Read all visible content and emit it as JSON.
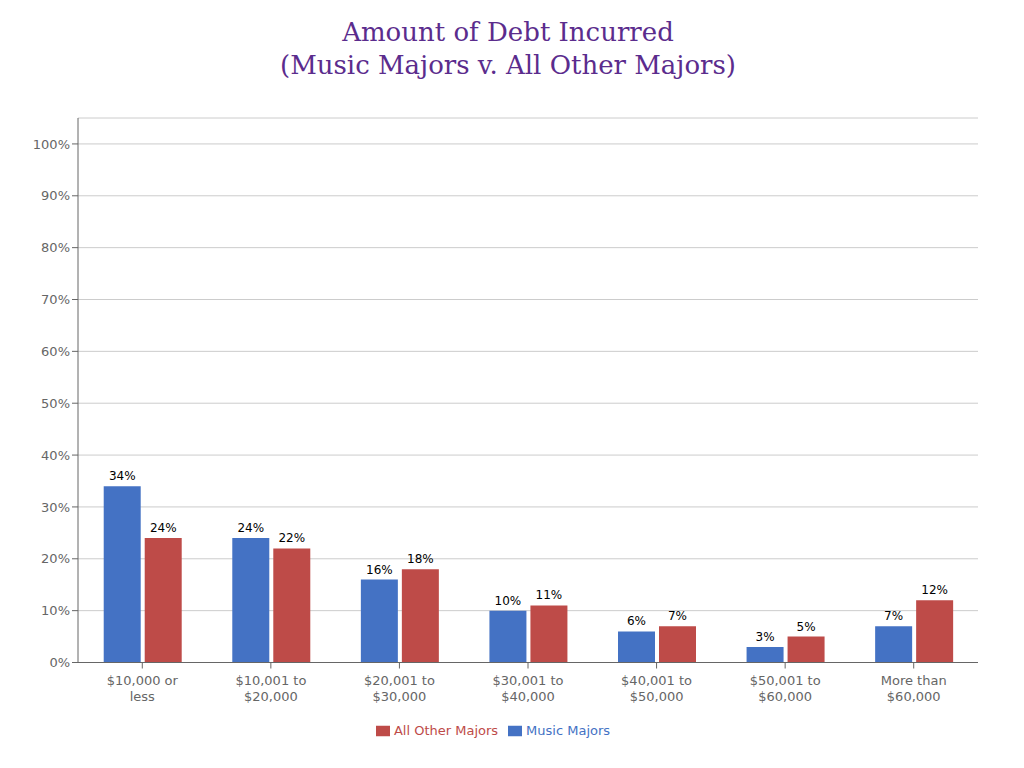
{
  "chart_data": {
    "type": "bar",
    "title": "Amount of Debt Incurred\n(Music Majors v. All Other Majors)",
    "categories": [
      "$10,000 or\nless",
      "$10,001 to\n$20,000",
      "$20,001 to\n$30,000",
      "$30,001 to\n$40,000",
      "$40,001 to\n$50,000",
      "$50,001 to\n$60,000",
      "More than\n$60,000"
    ],
    "series": [
      {
        "name": "Music Majors",
        "color": "#4472C4",
        "values": [
          34,
          24,
          16,
          10,
          6,
          3,
          7
        ],
        "value_labels": [
          "34%",
          "24%",
          "16%",
          "10%",
          "6%",
          "3%",
          "7%"
        ]
      },
      {
        "name": "All Other Majors",
        "color": "#BE4B48",
        "values": [
          24,
          22,
          18,
          11,
          7,
          5,
          12
        ],
        "value_labels": [
          "24%",
          "22%",
          "18%",
          "11%",
          "7%",
          "5%",
          "12%"
        ]
      }
    ],
    "ylim": [
      0,
      105
    ],
    "yticks": [
      {
        "value": 0,
        "label": "0%"
      },
      {
        "value": 10,
        "label": "10%"
      },
      {
        "value": 20,
        "label": "20%"
      },
      {
        "value": 30,
        "label": "30%"
      },
      {
        "value": 40,
        "label": "40%"
      },
      {
        "value": 50,
        "label": "50%"
      },
      {
        "value": 60,
        "label": "60%"
      },
      {
        "value": 70,
        "label": "70%"
      },
      {
        "value": 80,
        "label": "80%"
      },
      {
        "value": 90,
        "label": "90%"
      },
      {
        "value": 100,
        "label": "100%"
      }
    ],
    "grid": true,
    "legend": "bottom",
    "data_labels": true
  }
}
